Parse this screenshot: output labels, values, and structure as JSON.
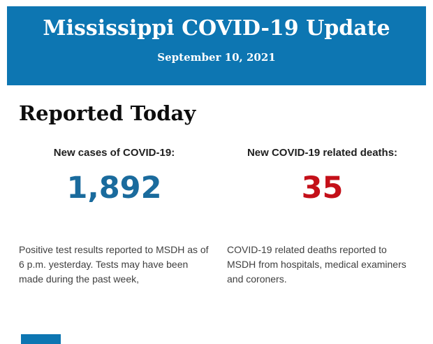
{
  "banner": {
    "title": "Mississippi COVID-19 Update",
    "date": "September 10, 2021",
    "background_color": "#0d76b2",
    "text_color": "#ffffff"
  },
  "section": {
    "heading": "Reported Today"
  },
  "stats": [
    {
      "label": "New cases of COVID-19:",
      "value": "1,892",
      "value_color": "#1a6b9d",
      "description": "Positive test results reported to MSDH as of 6 p.m. yesterday. Tests may have been made during the past week,"
    },
    {
      "label": "New COVID-19 related deaths:",
      "value": "35",
      "value_color": "#c41019",
      "description": "COVID-19 related deaths reported to MSDH from hospitals, medical examiners and coroners."
    }
  ],
  "footer": {
    "partial_bar_color": "#0d76b2"
  }
}
